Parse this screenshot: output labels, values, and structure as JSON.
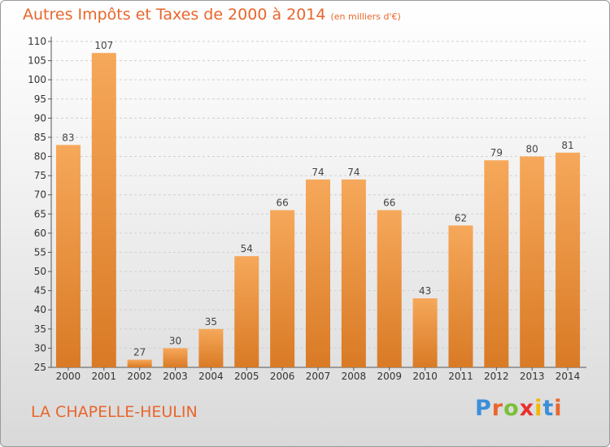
{
  "header": {
    "title": "Autres Impôts et Taxes de 2000 à 2014",
    "subtitle": "(en milliers d'€)"
  },
  "footer": {
    "place": "LA CHAPELLE-HEULIN",
    "logo_letters": [
      "P",
      "r",
      "o",
      "x",
      "i",
      "t",
      "i"
    ],
    "logo_colors": [
      "#3a8fd8",
      "#e8662c",
      "#7bbf3a",
      "#e83030",
      "#f2b705",
      "#3a8fd8",
      "#e8662c"
    ]
  },
  "colors": {
    "bar_light": "#f6a85a",
    "bar_dark": "#d97a25",
    "accent": "#e8662c"
  },
  "chart_data": {
    "type": "bar",
    "categories": [
      "2000",
      "2001",
      "2002",
      "2003",
      "2004",
      "2005",
      "2006",
      "2007",
      "2008",
      "2009",
      "2010",
      "2011",
      "2012",
      "2013",
      "2014"
    ],
    "values": [
      83,
      107,
      27,
      30,
      35,
      54,
      66,
      74,
      74,
      66,
      43,
      62,
      79,
      80,
      81
    ],
    "title": "Autres Impôts et Taxes de 2000 à 2014",
    "xlabel": "",
    "ylabel": "",
    "ylim": [
      25,
      110
    ],
    "yticks": [
      25,
      30,
      35,
      40,
      45,
      50,
      55,
      60,
      65,
      70,
      75,
      80,
      85,
      90,
      95,
      100,
      105,
      110
    ],
    "grid": true,
    "legend": "none",
    "data_labels": true
  }
}
